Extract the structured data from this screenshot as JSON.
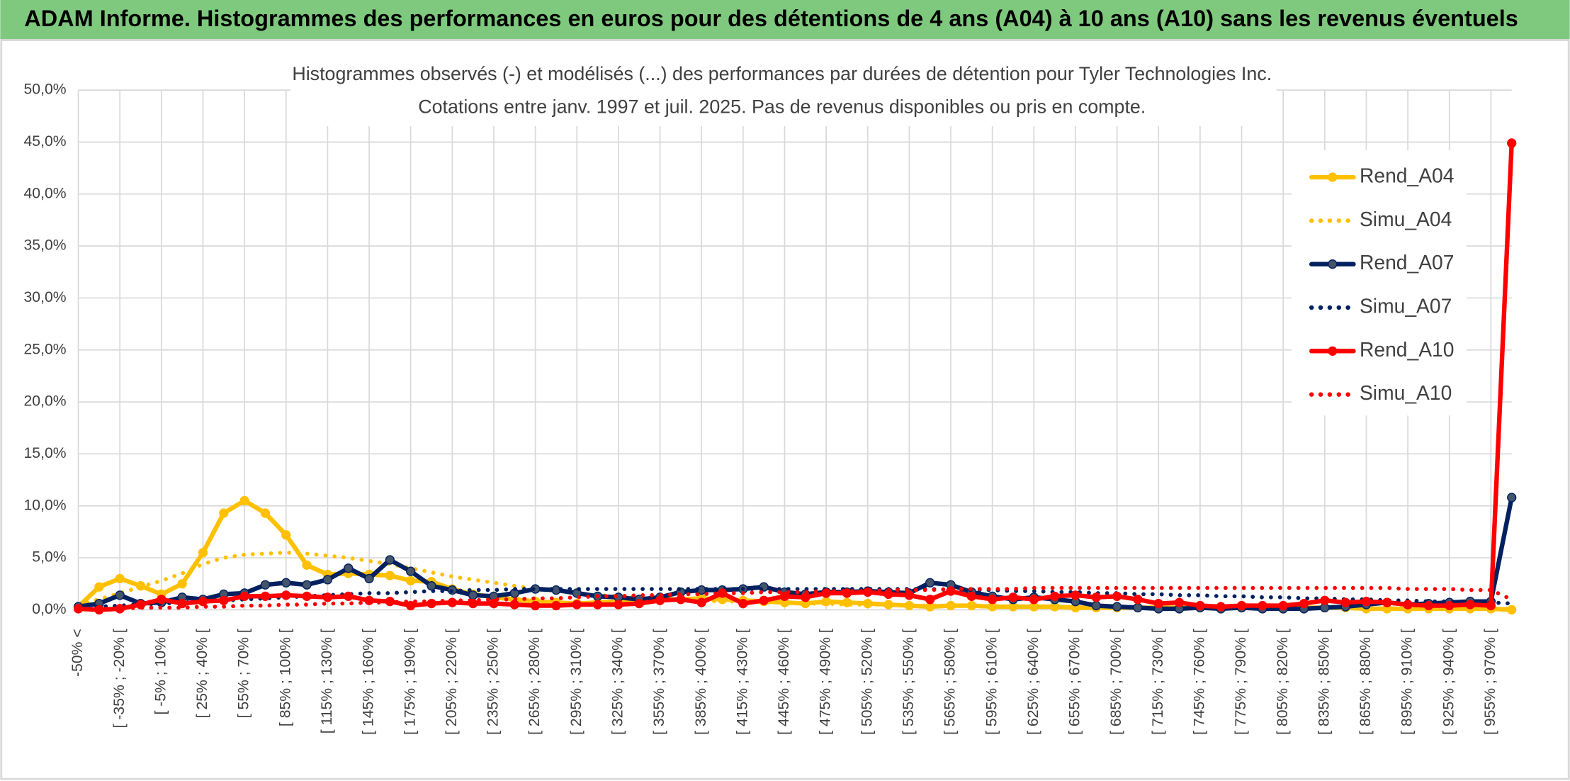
{
  "header": {
    "title": "ADAM Informe. Histogrammes des performances en euros pour des détentions de 4 ans (A04) à 10 ans (A10) sans les revenus éventuels"
  },
  "chart_data": {
    "type": "line",
    "title": "Histogrammes observés (-) et modélisés (...) des performances par durées de détention pour Tyler Technologies Inc.",
    "subtitle": "Cotations entre janv. 1997 et juil. 2025. Pas de revenus disponibles ou pris en compte.",
    "categories": [
      "-50% <",
      null,
      "[ -35% ; -20% [",
      null,
      "[ -5% ; 10% [",
      null,
      "[ 25% ; 40% [",
      null,
      "[ 55% ; 70% [",
      null,
      "[ 85% ; 100% [",
      null,
      "[ 115% ; 130% [",
      null,
      "[ 145% ; 160% [",
      null,
      "[ 175% ; 190% [",
      null,
      "[ 205% ; 220% [",
      null,
      "[ 235% ; 250% [",
      null,
      "[ 265% ; 280% [",
      null,
      "[ 295% ; 310% [",
      null,
      "[ 325% ; 340% [",
      null,
      "[ 355% ; 370% [",
      null,
      "[ 385% ; 400% [",
      null,
      "[ 415% ; 430% [",
      null,
      "[ 445% ; 460% [",
      null,
      "[ 475% ; 490% [",
      null,
      "[ 505% ; 520% [",
      null,
      "[ 535% ; 550% [",
      null,
      "[ 565% ; 580% [",
      null,
      "[ 595% ; 610% [",
      null,
      "[ 625% ; 640% [",
      null,
      "[ 655% ; 670% [",
      null,
      "[ 685% ; 700% [",
      null,
      "[ 715% ; 730% [",
      null,
      "[ 745% ; 760% [",
      null,
      "[ 775% ; 790% [",
      null,
      "[ 805% ; 820% [",
      null,
      "[ 835% ; 850% [",
      null,
      "[ 865% ; 880% [",
      null,
      "[ 895% ; 910% [",
      null,
      "[ 925% ; 940% [",
      null,
      "[ 955% ; 970% [",
      null
    ],
    "series": [
      {
        "name": "Rend_A04",
        "color": "#ffc000",
        "style": "solid",
        "markers": true,
        "values": [
          0.3,
          2.2,
          3.0,
          2.3,
          1.5,
          2.5,
          5.5,
          9.3,
          10.5,
          9.3,
          7.2,
          4.3,
          3.4,
          3.5,
          3.4,
          3.3,
          2.8,
          2.7,
          2.0,
          1.5,
          1.2,
          1.0,
          0.8,
          0.7,
          0.6,
          0.7,
          0.8,
          0.9,
          1.0,
          1.0,
          1.1,
          1.0,
          0.9,
          0.8,
          0.7,
          0.6,
          0.8,
          0.7,
          0.6,
          0.5,
          0.4,
          0.3,
          0.4,
          0.4,
          0.3,
          0.3,
          0.3,
          0.3,
          0.2,
          0.2,
          0.2,
          0.2,
          0.2,
          0.2,
          0.2,
          0.2,
          0.2,
          0.2,
          0.1,
          0.2,
          0.2,
          0.2,
          0.1,
          0.1,
          0.1,
          0.1,
          0.1,
          0.1,
          0.1,
          0.0
        ]
      },
      {
        "name": "Simu_A04",
        "color": "#ffc000",
        "style": "dotted",
        "markers": false,
        "values": [
          0.5,
          1.0,
          1.6,
          2.2,
          2.8,
          3.5,
          4.4,
          5.0,
          5.3,
          5.4,
          5.5,
          5.4,
          5.2,
          5.0,
          4.7,
          4.4,
          4.0,
          3.6,
          3.2,
          2.9,
          2.6,
          2.3,
          2.0,
          1.8,
          1.6,
          1.4,
          1.3,
          1.2,
          1.1,
          1.0,
          0.9,
          0.8,
          0.8,
          0.7,
          0.7,
          0.6,
          0.6,
          0.5,
          0.5,
          0.5,
          0.4,
          0.4,
          0.4,
          0.4,
          0.3,
          0.3,
          0.3,
          0.3,
          0.3,
          0.2,
          0.2,
          0.2,
          0.2,
          0.2,
          0.2,
          0.2,
          0.2,
          0.2,
          0.2,
          0.2,
          0.2,
          0.2,
          0.1,
          0.1,
          0.1,
          0.1,
          0.1,
          0.1,
          0.1,
          0.1
        ]
      },
      {
        "name": "Rend_A07",
        "color": "#002060",
        "style": "solid",
        "markers": true,
        "values": [
          0.3,
          0.6,
          1.4,
          0.6,
          0.7,
          1.2,
          1.0,
          1.5,
          1.6,
          2.4,
          2.6,
          2.4,
          2.9,
          4.0,
          3.0,
          4.8,
          3.7,
          2.3,
          1.9,
          1.4,
          1.3,
          1.6,
          2.0,
          1.9,
          1.6,
          1.3,
          1.2,
          1.0,
          1.2,
          1.7,
          1.9,
          1.9,
          2.0,
          2.2,
          1.7,
          1.5,
          1.7,
          1.7,
          1.8,
          1.7,
          1.6,
          2.6,
          2.4,
          1.7,
          1.3,
          1.0,
          1.2,
          1.0,
          0.8,
          0.4,
          0.3,
          0.2,
          0.1,
          0.1,
          0.2,
          0.1,
          0.2,
          0.1,
          0.1,
          0.1,
          0.2,
          0.3,
          0.5,
          0.7,
          0.5,
          0.6,
          0.7,
          0.8,
          0.8,
          10.8
        ]
      },
      {
        "name": "Simu_A07",
        "color": "#002060",
        "style": "dotted",
        "markers": false,
        "values": [
          0.2,
          0.3,
          0.4,
          0.5,
          0.6,
          0.7,
          0.8,
          0.9,
          1.0,
          1.1,
          1.2,
          1.3,
          1.4,
          1.5,
          1.6,
          1.6,
          1.7,
          1.8,
          1.8,
          1.9,
          1.9,
          2.0,
          2.0,
          2.0,
          2.0,
          2.0,
          2.0,
          2.0,
          2.0,
          2.0,
          2.0,
          2.0,
          2.0,
          2.0,
          2.0,
          2.0,
          2.0,
          2.0,
          2.0,
          2.0,
          2.0,
          2.0,
          1.9,
          1.9,
          1.9,
          1.8,
          1.8,
          1.7,
          1.7,
          1.6,
          1.6,
          1.5,
          1.5,
          1.4,
          1.4,
          1.3,
          1.3,
          1.2,
          1.2,
          1.1,
          1.1,
          1.0,
          1.0,
          0.9,
          0.9,
          0.8,
          0.8,
          0.7,
          0.7,
          0.6
        ]
      },
      {
        "name": "Rend_A10",
        "color": "#ff0000",
        "style": "solid",
        "markers": true,
        "values": [
          0.1,
          0.0,
          0.1,
          0.5,
          1.0,
          0.6,
          0.8,
          0.9,
          1.3,
          1.3,
          1.4,
          1.3,
          1.2,
          1.3,
          0.9,
          0.8,
          0.4,
          0.6,
          0.7,
          0.6,
          0.6,
          0.5,
          0.4,
          0.4,
          0.5,
          0.5,
          0.5,
          0.6,
          0.9,
          1.0,
          0.7,
          1.6,
          0.6,
          0.9,
          1.3,
          1.2,
          1.6,
          1.6,
          1.7,
          1.5,
          1.4,
          1.0,
          1.8,
          1.3,
          1.0,
          1.2,
          1.0,
          1.3,
          1.4,
          1.2,
          1.3,
          1.0,
          0.6,
          0.7,
          0.4,
          0.3,
          0.4,
          0.4,
          0.4,
          0.6,
          0.9,
          0.7,
          0.8,
          0.7,
          0.5,
          0.4,
          0.4,
          0.5,
          0.4,
          44.9
        ]
      },
      {
        "name": "Simu_A10",
        "color": "#ff0000",
        "style": "dotted",
        "markers": false,
        "values": [
          0.1,
          0.1,
          0.1,
          0.2,
          0.2,
          0.2,
          0.3,
          0.3,
          0.4,
          0.4,
          0.5,
          0.5,
          0.6,
          0.6,
          0.7,
          0.7,
          0.8,
          0.8,
          0.9,
          0.9,
          1.0,
          1.0,
          1.1,
          1.1,
          1.2,
          1.3,
          1.3,
          1.4,
          1.4,
          1.5,
          1.5,
          1.6,
          1.6,
          1.7,
          1.7,
          1.7,
          1.8,
          1.8,
          1.8,
          1.9,
          1.9,
          1.9,
          2.0,
          2.0,
          2.0,
          2.0,
          2.1,
          2.1,
          2.1,
          2.1,
          2.1,
          2.1,
          2.1,
          2.1,
          2.1,
          2.1,
          2.1,
          2.1,
          2.1,
          2.1,
          2.1,
          2.1,
          2.1,
          2.1,
          2.0,
          2.0,
          2.0,
          1.9,
          1.9,
          1.0
        ]
      }
    ],
    "ylim": [
      0,
      50
    ],
    "yticks": [
      {
        "value": 0,
        "label": "0,0%"
      },
      {
        "value": 5,
        "label": "5,0%"
      },
      {
        "value": 10,
        "label": "10,0%"
      },
      {
        "value": 15,
        "label": "15,0%"
      },
      {
        "value": 20,
        "label": "20,0%"
      },
      {
        "value": 25,
        "label": "25,0%"
      },
      {
        "value": 30,
        "label": "30,0%"
      },
      {
        "value": 35,
        "label": "35,0%"
      },
      {
        "value": 40,
        "label": "40,0%"
      },
      {
        "value": 45,
        "label": "45,0%"
      },
      {
        "value": 50,
        "label": "50,0%"
      }
    ],
    "grid": true,
    "legend": "right"
  }
}
